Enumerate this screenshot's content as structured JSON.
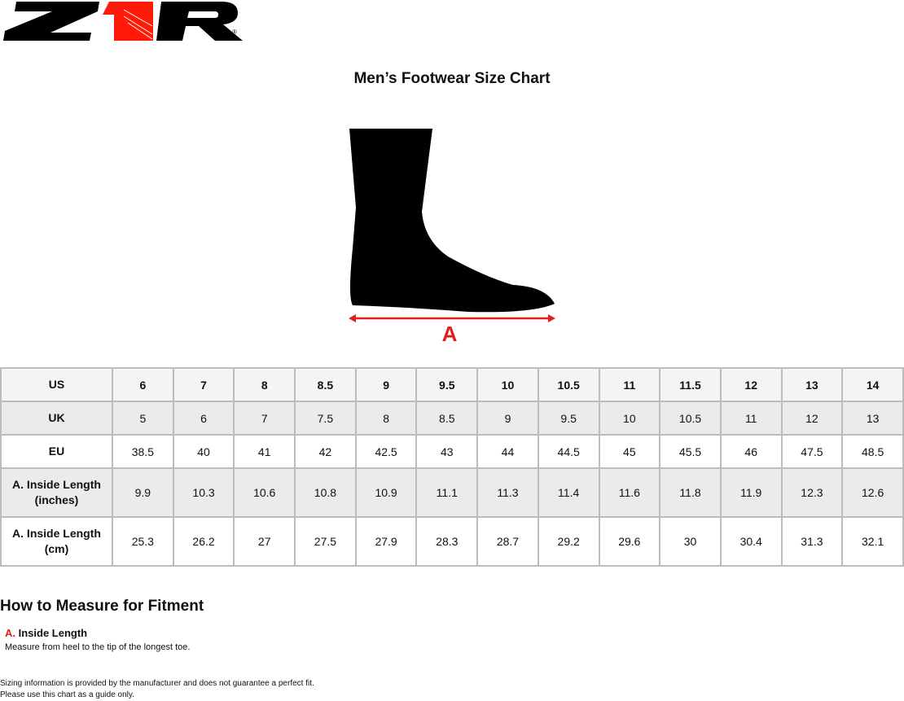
{
  "logo": {
    "text": "Z1R",
    "colors": {
      "black": "#000000",
      "red": "#ff1a0a"
    }
  },
  "title": "Men’s Footwear Size Chart",
  "diagram": {
    "label": "A",
    "arrow_color": "#e0201b"
  },
  "table": {
    "rows": [
      {
        "header": "US",
        "values": [
          "6",
          "7",
          "8",
          "8.5",
          "9",
          "9.5",
          "10",
          "10.5",
          "11",
          "11.5",
          "12",
          "13",
          "14"
        ]
      },
      {
        "header": "UK",
        "values": [
          "5",
          "6",
          "7",
          "7.5",
          "8",
          "8.5",
          "9",
          "9.5",
          "10",
          "10.5",
          "11",
          "12",
          "13"
        ]
      },
      {
        "header": "EU",
        "values": [
          "38.5",
          "40",
          "41",
          "42",
          "42.5",
          "43",
          "44",
          "44.5",
          "45",
          "45.5",
          "46",
          "47.5",
          "48.5"
        ]
      },
      {
        "header": "A. Inside Length",
        "header2": "(inches)",
        "values": [
          "9.9",
          "10.3",
          "10.6",
          "10.8",
          "10.9",
          "11.1",
          "11.3",
          "11.4",
          "11.6",
          "11.8",
          "11.9",
          "12.3",
          "12.6"
        ]
      },
      {
        "header": "A. Inside Length",
        "header2": "(cm)",
        "values": [
          "25.3",
          "26.2",
          "27",
          "27.5",
          "27.9",
          "28.3",
          "28.7",
          "29.2",
          "29.6",
          "30",
          "30.4",
          "31.3",
          "32.1"
        ]
      }
    ]
  },
  "howto": {
    "title": "How to Measure for Fitment",
    "letter": "A.",
    "label": "Inside Length",
    "description": "Measure from heel to the tip of the longest toe."
  },
  "disclaimer": {
    "line1": "Sizing information is provided by the manufacturer and does not guarantee a perfect fit.",
    "line2": "Please use this chart as a guide only."
  }
}
